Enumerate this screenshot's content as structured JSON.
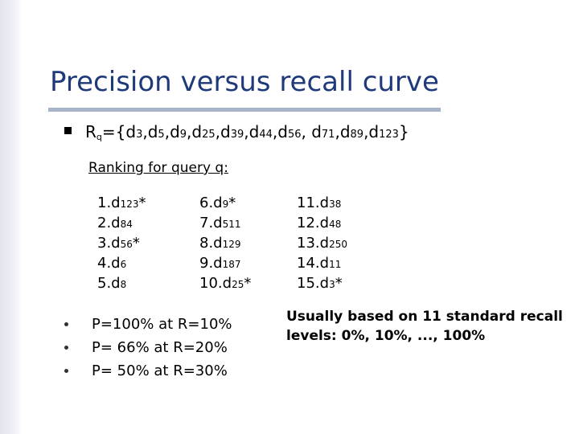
{
  "slide": {
    "title": "Precision versus recall curve",
    "rq": {
      "prefix": "R",
      "subscript": "q",
      "docs": [
        {
          "d": "d",
          "n": "3"
        },
        {
          "d": "d",
          "n": "5"
        },
        {
          "d": "d",
          "n": "9"
        },
        {
          "d": "d",
          "n": "25"
        },
        {
          "d": "d",
          "n": "39"
        },
        {
          "d": "d",
          "n": "44"
        },
        {
          "d": "d",
          "n": "56"
        },
        {
          "d": "d",
          "n": "71"
        },
        {
          "d": "d",
          "n": "89"
        },
        {
          "d": "d",
          "n": "123"
        }
      ]
    },
    "ranking_label": "Ranking for query q:",
    "rankings": [
      [
        {
          "idx": "1.",
          "d": "d",
          "n": "123",
          "rel": "*"
        },
        {
          "idx": "2.",
          "d": "d",
          "n": "84",
          "rel": ""
        },
        {
          "idx": "3.",
          "d": "d",
          "n": "56",
          "rel": "*"
        },
        {
          "idx": "4.",
          "d": "d",
          "n": "6",
          "rel": ""
        },
        {
          "idx": "5.",
          "d": "d",
          "n": "8",
          "rel": ""
        }
      ],
      [
        {
          "idx": "6.",
          "d": "d",
          "n": "9",
          "rel": "*"
        },
        {
          "idx": "7.",
          "d": "d",
          "n": "511",
          "rel": ""
        },
        {
          "idx": "8.",
          "d": "d",
          "n": "129",
          "rel": ""
        },
        {
          "idx": "9.",
          "d": "d",
          "n": "187",
          "rel": ""
        },
        {
          "idx": "10.",
          "d": "d",
          "n": "25",
          "rel": "*"
        }
      ],
      [
        {
          "idx": "11.",
          "d": "d",
          "n": "38",
          "rel": ""
        },
        {
          "idx": "12.",
          "d": "d",
          "n": "48",
          "rel": ""
        },
        {
          "idx": "13.",
          "d": "d",
          "n": "250",
          "rel": ""
        },
        {
          "idx": "14.",
          "d": "d",
          "n": "11",
          "rel": ""
        },
        {
          "idx": "15.",
          "d": "d",
          "n": "3",
          "rel": "*"
        }
      ]
    ],
    "pr_points": [
      "P=100% at R=10%",
      "P= 66% at R=20%",
      "P= 50% at R=30%"
    ],
    "note": "Usually based on 11 standard recall levels: 0%, 10%, ..., 100%"
  }
}
